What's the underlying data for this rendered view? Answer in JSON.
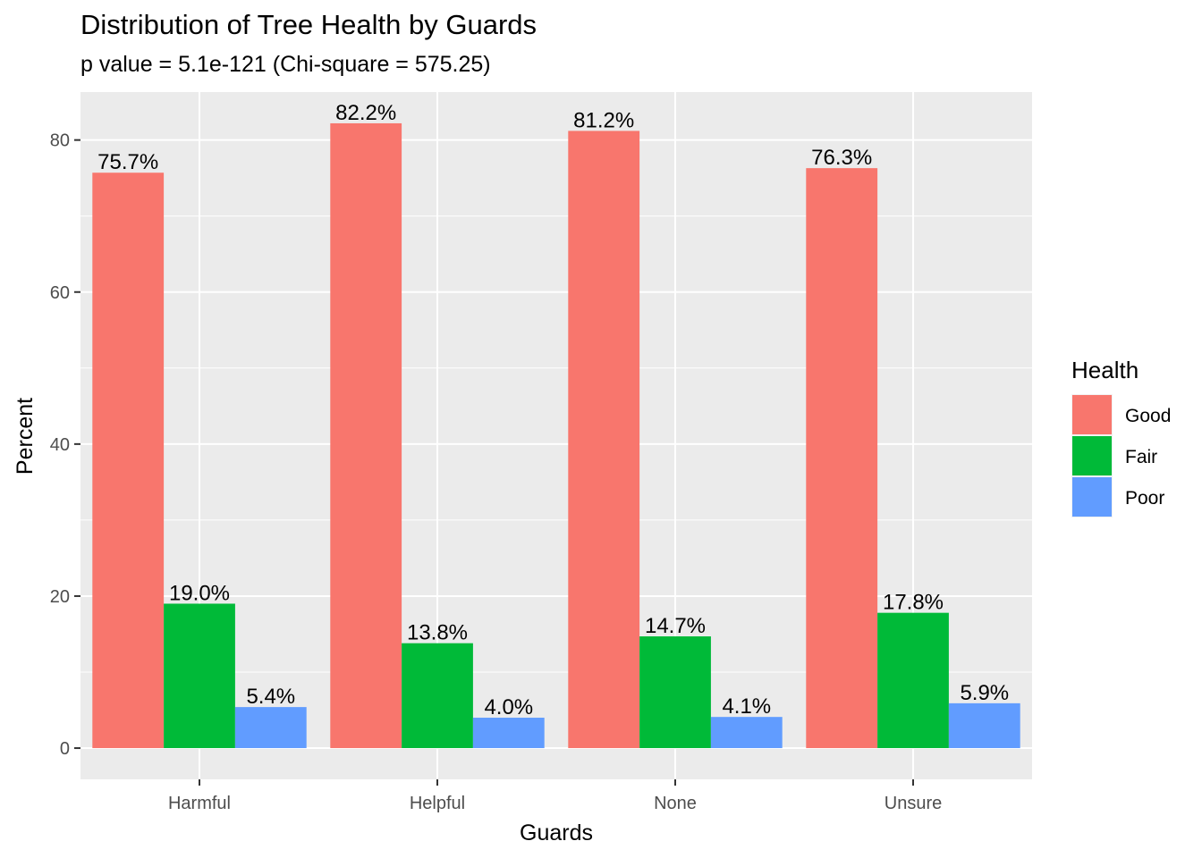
{
  "chart_data": {
    "type": "bar",
    "title": "Distribution of Tree Health by Guards",
    "subtitle": "p value = 5.1e-121 (Chi-square = 575.25)",
    "xlabel": "Guards",
    "ylabel": "Percent",
    "categories": [
      "Harmful",
      "Helpful",
      "None",
      "Unsure"
    ],
    "series": [
      {
        "name": "Good",
        "color": "#F8766D",
        "values": [
          75.7,
          82.2,
          81.2,
          76.3
        ],
        "labels": [
          "75.7%",
          "82.2%",
          "81.2%",
          "76.3%"
        ]
      },
      {
        "name": "Fair",
        "color": "#00BA38",
        "values": [
          19.0,
          13.8,
          14.7,
          17.8
        ],
        "labels": [
          "19.0%",
          "13.8%",
          "14.7%",
          "17.8%"
        ]
      },
      {
        "name": "Poor",
        "color": "#619CFF",
        "values": [
          5.4,
          4.0,
          4.1,
          5.9
        ],
        "labels": [
          "5.4%",
          "4.0%",
          "4.1%",
          "5.9%"
        ]
      }
    ],
    "ylim": [
      -4.11,
      86.31
    ],
    "yticks": [
      0,
      20,
      40,
      60,
      80
    ],
    "ytick_labels": [
      "0",
      "20",
      "40",
      "60",
      "80"
    ],
    "grid": true,
    "legend_title": "Health",
    "legend_position": "right",
    "panel_background": "#EBEBEB",
    "grid_color": "#FFFFFF"
  }
}
